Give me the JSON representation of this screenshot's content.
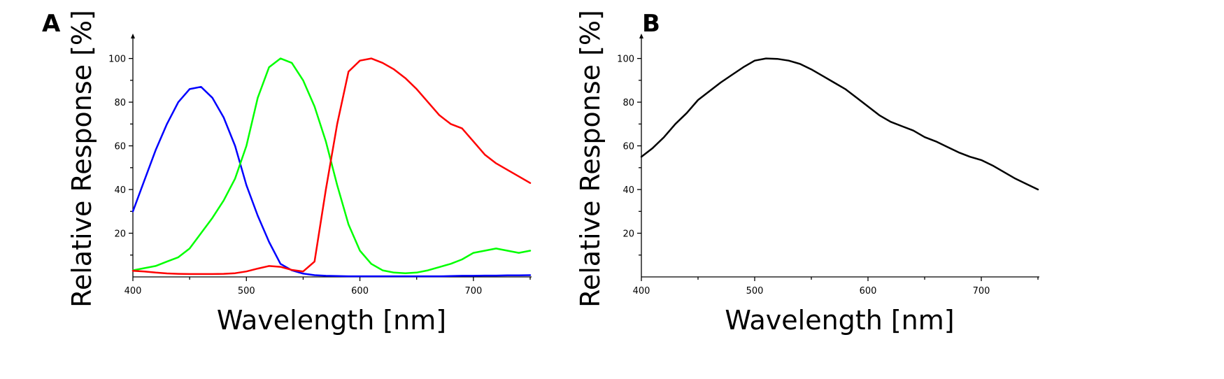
{
  "chart_data": [
    {
      "panel_label": "A",
      "type": "line",
      "xlabel": "Wavelength [nm]",
      "ylabel": "Relative Response [%]",
      "xlim": [
        400,
        750
      ],
      "ylim": [
        0,
        105
      ],
      "x_ticks": [
        400,
        500,
        600,
        700
      ],
      "y_ticks": [
        20,
        40,
        60,
        80,
        100
      ],
      "x": [
        400,
        410,
        420,
        430,
        440,
        450,
        460,
        470,
        480,
        490,
        500,
        510,
        520,
        530,
        540,
        550,
        560,
        570,
        580,
        590,
        600,
        610,
        620,
        630,
        640,
        650,
        660,
        670,
        680,
        690,
        700,
        710,
        720,
        730,
        740,
        750
      ],
      "series": [
        {
          "color": "#0000ff",
          "values": [
            30,
            44,
            58,
            70,
            80,
            86,
            87,
            82,
            73,
            60,
            42,
            28,
            16,
            6,
            3,
            1.5,
            0.8,
            0.5,
            0.4,
            0.3,
            0.3,
            0.3,
            0.3,
            0.3,
            0.3,
            0.3,
            0.3,
            0.3,
            0.4,
            0.5,
            0.5,
            0.6,
            0.6,
            0.7,
            0.7,
            0.8
          ]
        },
        {
          "color": "#00ff00",
          "values": [
            3,
            4,
            5,
            7,
            9,
            13,
            20,
            27,
            35,
            45,
            60,
            82,
            96,
            100,
            98,
            90,
            78,
            62,
            42,
            24,
            12,
            6,
            3,
            2,
            1.7,
            2,
            3,
            4.5,
            6,
            8,
            11,
            12,
            13,
            12,
            11,
            12
          ]
        },
        {
          "color": "#ff0000",
          "values": [
            2.8,
            2.5,
            2,
            1.6,
            1.4,
            1.3,
            1.3,
            1.3,
            1.4,
            1.7,
            2.5,
            3.8,
            5,
            4.6,
            3.2,
            2.5,
            7,
            40,
            70,
            94,
            99,
            100,
            98,
            95,
            91,
            86,
            80,
            74,
            70,
            68,
            62,
            56,
            52,
            49,
            46,
            43
          ]
        }
      ]
    },
    {
      "panel_label": "B",
      "type": "line",
      "xlabel": "Wavelength [nm]",
      "ylabel": "Relative Response [%]",
      "xlim": [
        400,
        750
      ],
      "ylim": [
        0,
        105
      ],
      "x_ticks": [
        400,
        500,
        600,
        700
      ],
      "y_ticks": [
        20,
        40,
        60,
        80,
        100
      ],
      "x": [
        400,
        410,
        420,
        430,
        440,
        450,
        460,
        470,
        480,
        490,
        500,
        510,
        520,
        530,
        540,
        550,
        560,
        570,
        580,
        590,
        600,
        610,
        620,
        630,
        640,
        650,
        660,
        670,
        680,
        690,
        700,
        710,
        720,
        730,
        740,
        750
      ],
      "series": [
        {
          "color": "#000000",
          "values": [
            55,
            59,
            64,
            70,
            75,
            81,
            85,
            89,
            92.5,
            96,
            99,
            100,
            99.8,
            99,
            97.5,
            95,
            92,
            89,
            86,
            82,
            78,
            74,
            71,
            69,
            67,
            64,
            62,
            59.5,
            57,
            55,
            53.5,
            51,
            48,
            45,
            42.5,
            40
          ]
        }
      ]
    }
  ]
}
